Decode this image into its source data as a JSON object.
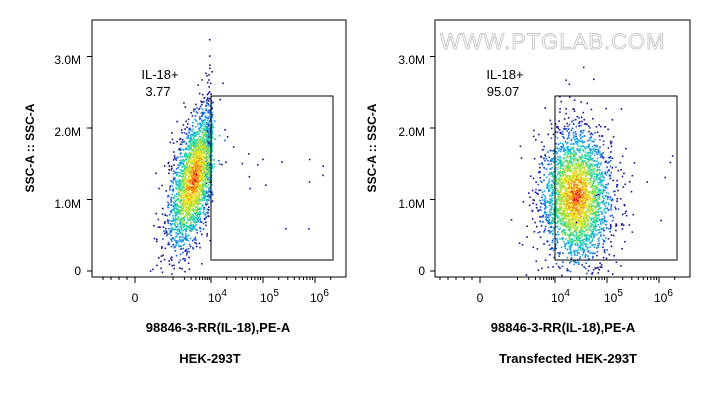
{
  "watermark": "WWW.PTGLAB.COM",
  "chart_data": [
    {
      "type": "scatter",
      "subtype": "flow-cytometry-density-plot",
      "sample_label": "HEK-293T",
      "xlabel": "98846-3-RR(IL-18),PE-A",
      "ylabel": "SSC-A :: SSC-A",
      "x_scale": "biexponential",
      "x_tick_labels": [
        "0",
        "10^4",
        "10^5",
        "10^6"
      ],
      "y_tick_labels": [
        "0",
        "1.0M",
        "2.0M",
        "3.0M"
      ],
      "ylim": [
        0,
        3500000
      ],
      "gate": {
        "name": "IL-18+",
        "value": "3.77",
        "x_range": [
          10000,
          2500000
        ],
        "y_range": [
          150000,
          2500000
        ]
      },
      "population": {
        "x_center": 3500,
        "y_center": 1300000,
        "y_spread": 420000,
        "tilt": "upward"
      }
    },
    {
      "type": "scatter",
      "subtype": "flow-cytometry-density-plot",
      "sample_label": "Transfected HEK-293T",
      "xlabel": "98846-3-RR(IL-18),PE-A",
      "ylabel": "SSC-A :: SSC-A",
      "x_scale": "biexponential",
      "x_tick_labels": [
        "0",
        "10^4",
        "10^5",
        "10^6"
      ],
      "y_tick_labels": [
        "0",
        "1.0M",
        "2.0M",
        "3.0M"
      ],
      "ylim": [
        0,
        3500000
      ],
      "gate": {
        "name": "IL-18+",
        "value": "95.07",
        "x_range": [
          10000,
          2500000
        ],
        "y_range": [
          150000,
          2500000
        ]
      },
      "population": {
        "x_center": 25000,
        "y_center": 1050000,
        "y_spread": 480000,
        "tilt": "none"
      }
    }
  ],
  "colors": [
    "#1a0f8f",
    "#1c56d6",
    "#19a6e6",
    "#25d6a4",
    "#9be04a",
    "#f0e028",
    "#f28a1c",
    "#e01818"
  ]
}
